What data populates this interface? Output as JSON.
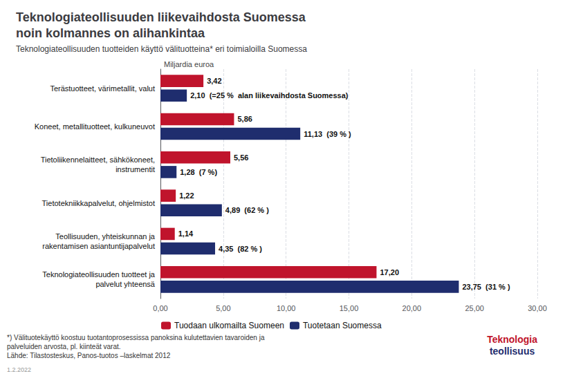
{
  "chart_data": {
    "type": "bar",
    "orientation": "horizontal",
    "title": "Teknologiateollisuuden liikevaihdosta Suomessa\nnoin kolmannes on alihankintaa",
    "subtitle": "Teknologiateollisuuden tuotteiden käyttö välituotteina* eri toimialoilla Suomessa",
    "xlabel": "Miljardia euroa",
    "categories": [
      "Terästuotteet, värimetallit, valut",
      "Koneet, metallituotteet, kulkuneuvot",
      "Tietoliikennelaitteet, sähkökoneet,\ninstrumentit",
      "Tietotekniikkapalvelut, ohjelmistot",
      "Teollisuuden, yhteiskunnan ja\nrakentamisen asiantuntijapalvelut",
      "Teknologiateollisuuden tuotteet ja\npalvelut yhteensä"
    ],
    "series": [
      {
        "name": "Tuodaan ulkomailta Suomeen",
        "color": "#c0142c",
        "values": [
          3.42,
          5.86,
          5.56,
          1.22,
          1.14,
          17.2
        ],
        "value_labels": [
          "3,42",
          "5,86",
          "5,56",
          "1,22",
          "1,14",
          "17,20"
        ]
      },
      {
        "name": "Tuotetaan Suomessa",
        "color": "#1f2d6e",
        "values": [
          2.1,
          11.13,
          1.28,
          4.89,
          4.35,
          23.75
        ],
        "value_labels": [
          "2,10  (=25 %  alan liikevaihdosta Suomessa)",
          "11,13  (39 % )",
          "1,28  (7 %)",
          "4,89  (62 % )",
          "4,35  (82 % )",
          "23,75  (31 % )"
        ]
      }
    ],
    "xlim": [
      0,
      30
    ],
    "xticks": [
      {
        "value": 0,
        "label": "0,00"
      },
      {
        "value": 5,
        "label": "5,00"
      },
      {
        "value": 10,
        "label": "10,00"
      },
      {
        "value": 15,
        "label": "15,00"
      },
      {
        "value": 20,
        "label": "20,00"
      },
      {
        "value": 25,
        "label": "25,00"
      },
      {
        "value": 30,
        "label": "30,00"
      }
    ],
    "grid": true,
    "legend": "bottom",
    "data_labels": true,
    "annotations": [
      "*) Välituotekäyttö koostuu tuotantoprosessissa panoksina kulutettavien tavaroiden ja\npalveluiden arvosta, pl. kiinteät varat.\nLähde: Tilastosteskus, Panos-tuotos –laskelmat 2012",
      "1.2.2022",
      "Teknologia\nteollisuus"
    ]
  }
}
